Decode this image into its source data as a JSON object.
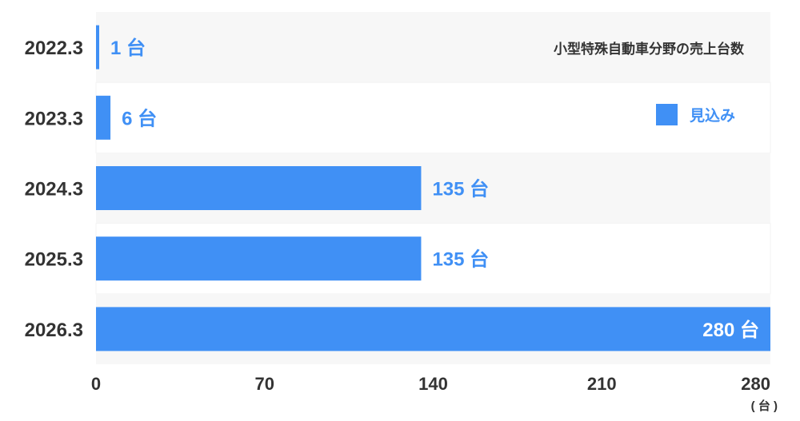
{
  "chart_data": {
    "type": "bar",
    "orientation": "horizontal",
    "title": "小型特殊自動車分野の売上台数",
    "categories": [
      "2022.3",
      "2023.3",
      "2024.3",
      "2025.3",
      "2026.3"
    ],
    "values": [
      1,
      6,
      135,
      135,
      280
    ],
    "value_labels": [
      "1 台",
      "6 台",
      "135 台",
      "135 台",
      "280 台"
    ],
    "xlim": [
      0,
      280
    ],
    "xticks": [
      "0",
      "70",
      "140",
      "210",
      "280"
    ],
    "xunit": "( 台 )",
    "legend": {
      "label": "見込み",
      "placement": "top-right"
    },
    "grid": false,
    "colors": {
      "bar": "#4090f5",
      "band": "#f7f7f7",
      "text": "#333333",
      "label_inside": "#ffffff"
    }
  }
}
